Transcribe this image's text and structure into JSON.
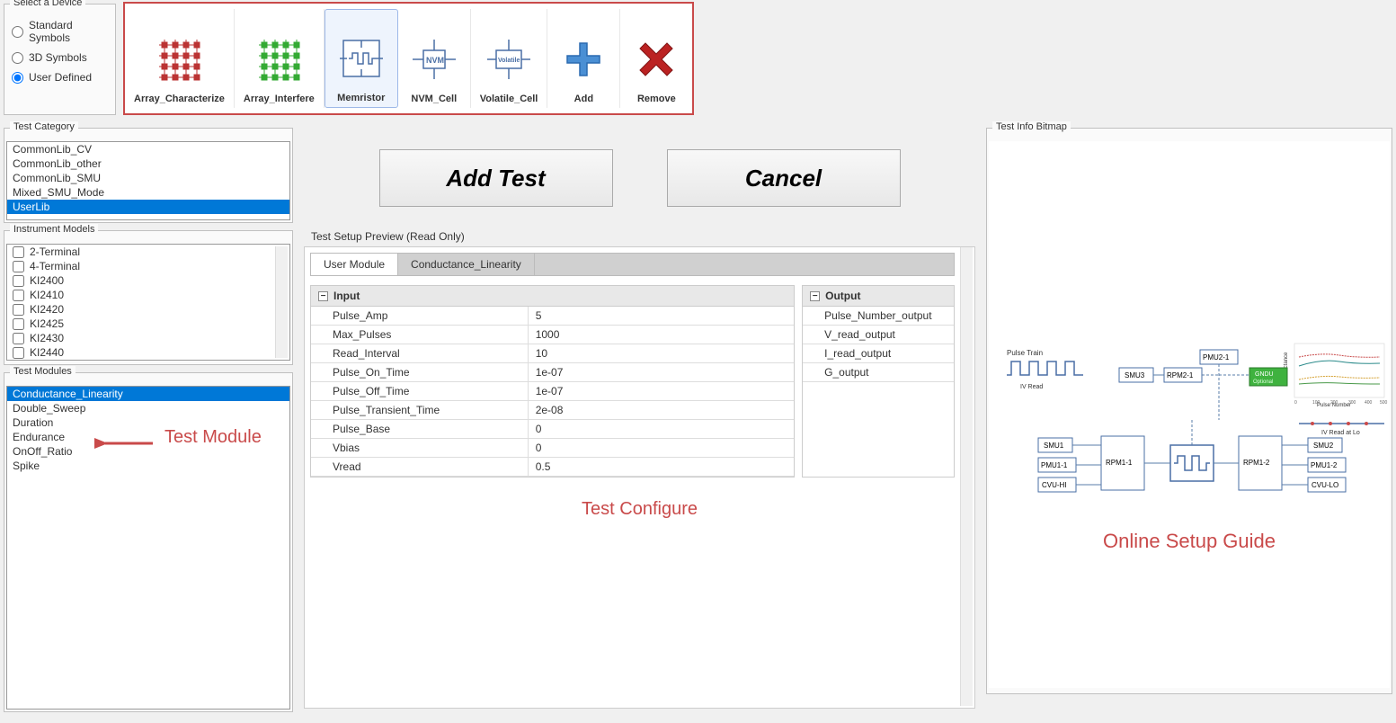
{
  "device_select": {
    "title": "Select a Device",
    "options": [
      {
        "label": "Standard Symbols",
        "checked": false
      },
      {
        "label": "3D Symbols",
        "checked": false
      },
      {
        "label": "User Defined",
        "checked": true
      }
    ]
  },
  "device_toolbar": {
    "items": [
      {
        "label": "Array_Characterize",
        "selected": false,
        "icon_type": "array_red"
      },
      {
        "label": "Array_Interfere",
        "selected": false,
        "icon_type": "array_green"
      },
      {
        "label": "Memristor",
        "selected": true,
        "icon_type": "memristor"
      },
      {
        "label": "NVM_Cell",
        "selected": false,
        "icon_type": "nvm"
      },
      {
        "label": "Volatile_Cell",
        "selected": false,
        "icon_type": "volatile"
      },
      {
        "label": "Add",
        "selected": false,
        "icon_type": "plus"
      },
      {
        "label": "Remove",
        "selected": false,
        "icon_type": "cross"
      }
    ],
    "highlight_color": "#c94a4a"
  },
  "test_category": {
    "title": "Test Category",
    "items": [
      "CommonLib_CV",
      "CommonLib_other",
      "CommonLib_SMU",
      "Mixed_SMU_Mode",
      "UserLib"
    ],
    "selected": "UserLib"
  },
  "instrument_models": {
    "title": "Instrument Models",
    "items": [
      "2-Terminal",
      "4-Terminal",
      "KI2400",
      "KI2410",
      "KI2420",
      "KI2425",
      "KI2430",
      "KI2440"
    ]
  },
  "test_modules": {
    "title": "Test Modules",
    "items": [
      "Conductance_Linearity",
      "Double_Sweep",
      "Duration",
      "Endurance",
      "OnOff_Ratio",
      "Spike"
    ],
    "selected": "Conductance_Linearity",
    "annotation": "Test Module"
  },
  "buttons": {
    "add_test": "Add Test",
    "cancel": "Cancel"
  },
  "preview": {
    "title": "Test Setup Preview (Read Only)",
    "tabs": [
      {
        "label": "User Module",
        "active": true
      },
      {
        "label": "Conductance_Linearity",
        "active": false
      }
    ],
    "input": {
      "header": "Input",
      "rows": [
        {
          "k": "Pulse_Amp",
          "v": "5"
        },
        {
          "k": "Max_Pulses",
          "v": "1000"
        },
        {
          "k": "Read_Interval",
          "v": "10"
        },
        {
          "k": "Pulse_On_Time",
          "v": "1e-07"
        },
        {
          "k": "Pulse_Off_Time",
          "v": "1e-07"
        },
        {
          "k": "Pulse_Transient_Time",
          "v": "2e-08"
        },
        {
          "k": "Pulse_Base",
          "v": "0"
        },
        {
          "k": "Vbias",
          "v": "0"
        },
        {
          "k": "Vread",
          "v": "0.5"
        }
      ]
    },
    "output": {
      "header": "Output",
      "rows": [
        "Pulse_Number_output",
        "V_read_output",
        "I_read_output",
        "G_output"
      ]
    },
    "annotation": "Test Configure"
  },
  "bitmap": {
    "title": "Test Info Bitmap",
    "annotation": "Online Setup Guide",
    "diagram": {
      "pulse_train_label": "Pulse Train",
      "iv_read_label": "IV Read",
      "iv_read_lo_label": "IV Read at Lo",
      "chart_ylabel": "Conductance",
      "chart_xlabel": "Pulse Number",
      "chart_xticks": [
        "0",
        "100",
        "200",
        "300",
        "400",
        "500"
      ],
      "node_labels": [
        "SMU3",
        "PMU2-1",
        "RPM2-1",
        "GNDU",
        "Optional",
        "SMU1",
        "PMU1-1",
        "CVU-HI",
        "RPM1-1",
        "RPM1-2",
        "SMU2",
        "PMU1-2",
        "CVU-LO"
      ],
      "colors": {
        "gndu_bg": "#3fb23f",
        "box_border": "#4a6fa5",
        "line": "#5a7ca8",
        "chart_series": [
          "#c94a4a",
          "#2a8a8a",
          "#d4a030",
          "#4a9a4a"
        ]
      }
    }
  },
  "colors": {
    "selection_bg": "#0078d7",
    "annotation": "#c94a4a",
    "panel_bg": "#fafafa",
    "border": "#c0c0c0"
  }
}
